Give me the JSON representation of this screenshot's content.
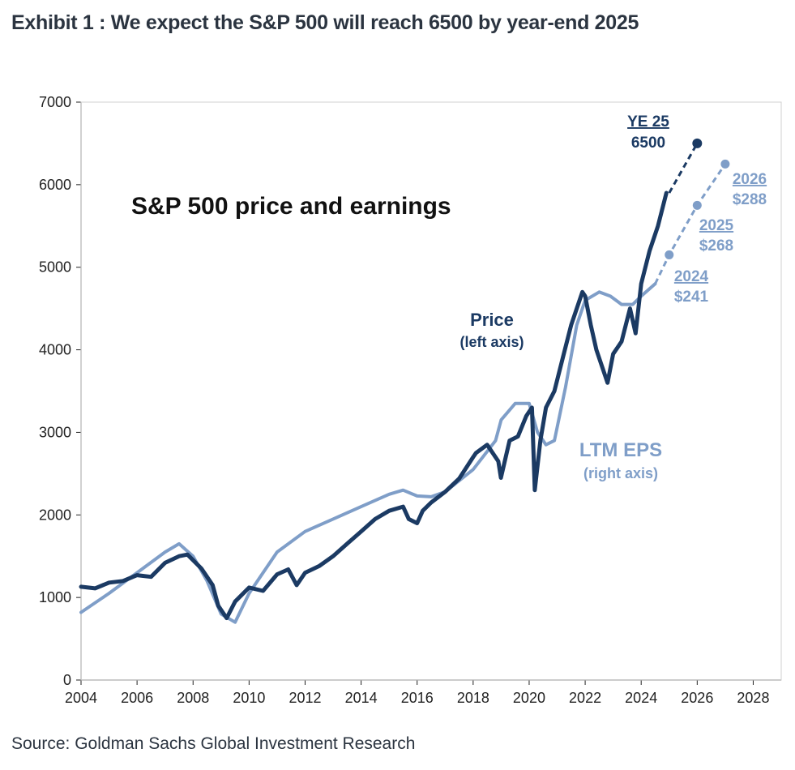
{
  "header": {
    "title": "Exhibit 1 : We expect the S&P 500 will reach 6500 by year-end 2025"
  },
  "footer": {
    "source": "Source: Goldman Sachs Global Investment Research"
  },
  "colors": {
    "price": "#1b3a63",
    "eps": "#7f9ec8",
    "axis": "#222222",
    "text": "#222222"
  },
  "chart_data": {
    "type": "line",
    "title": "S&P 500 price and earnings",
    "x_ticks": [
      "2004",
      "2006",
      "2008",
      "2010",
      "2012",
      "2014",
      "2016",
      "2018",
      "2020",
      "2022",
      "2024",
      "2026",
      "2028"
    ],
    "y_ticks": [
      "0",
      "1000",
      "2000",
      "3000",
      "4000",
      "5000",
      "6000",
      "7000"
    ],
    "xlim": [
      2004,
      2029
    ],
    "ylim": [
      0,
      7000
    ],
    "series": [
      {
        "name": "Price",
        "axis_label": "(left axis)",
        "x": [
          2004.0,
          2004.5,
          2005.0,
          2005.5,
          2006.0,
          2006.5,
          2007.0,
          2007.5,
          2007.8,
          2008.3,
          2008.7,
          2008.9,
          2009.2,
          2009.5,
          2010.0,
          2010.5,
          2011.0,
          2011.4,
          2011.7,
          2012.0,
          2012.5,
          2013.0,
          2013.5,
          2014.0,
          2014.5,
          2015.0,
          2015.5,
          2015.7,
          2016.0,
          2016.2,
          2016.5,
          2017.0,
          2017.5,
          2018.0,
          2018.1,
          2018.5,
          2018.9,
          2018.99,
          2019.3,
          2019.6,
          2019.9,
          2020.1,
          2020.2,
          2020.4,
          2020.6,
          2020.9,
          2021.2,
          2021.5,
          2021.9,
          2022.0,
          2022.2,
          2022.4,
          2022.6,
          2022.8,
          2023.0,
          2023.3,
          2023.6,
          2023.8,
          2024.0,
          2024.3,
          2024.6,
          2024.9
        ],
        "values": [
          1130,
          1110,
          1180,
          1200,
          1270,
          1250,
          1420,
          1500,
          1520,
          1350,
          1150,
          900,
          750,
          950,
          1120,
          1080,
          1280,
          1340,
          1150,
          1300,
          1380,
          1500,
          1650,
          1800,
          1950,
          2050,
          2100,
          1950,
          1900,
          2050,
          2150,
          2280,
          2440,
          2700,
          2750,
          2850,
          2650,
          2450,
          2900,
          2950,
          3200,
          3300,
          2300,
          2900,
          3300,
          3500,
          3900,
          4300,
          4700,
          4650,
          4300,
          4000,
          3800,
          3600,
          3950,
          4100,
          4500,
          4200,
          4800,
          5200,
          5500,
          5900
        ]
      },
      {
        "name": "LTM EPS",
        "axis_label": "(right axis)",
        "x": [
          2004.0,
          2005.0,
          2006.0,
          2007.0,
          2007.5,
          2008.0,
          2008.5,
          2009.0,
          2009.5,
          2010.0,
          2010.5,
          2011.0,
          2012.0,
          2013.0,
          2014.0,
          2015.0,
          2015.5,
          2016.0,
          2016.5,
          2017.0,
          2018.0,
          2018.8,
          2019.0,
          2019.5,
          2020.0,
          2020.3,
          2020.6,
          2020.9,
          2021.3,
          2021.7,
          2022.0,
          2022.5,
          2022.9,
          2023.3,
          2023.7,
          2024.0,
          2024.5
        ],
        "values": [
          820,
          1050,
          1300,
          1550,
          1650,
          1500,
          1200,
          800,
          700,
          1050,
          1300,
          1550,
          1800,
          1950,
          2100,
          2250,
          2300,
          2230,
          2220,
          2280,
          2550,
          2900,
          3150,
          3350,
          3350,
          3000,
          2850,
          2900,
          3550,
          4300,
          4600,
          4700,
          4650,
          4550,
          4550,
          4650,
          4800
        ]
      }
    ],
    "projections": [
      {
        "series": "Price",
        "label_line1": "YE 25",
        "label_line2": "6500",
        "x": [
          2025.0,
          2026.0
        ],
        "values": [
          5900,
          6500
        ]
      },
      {
        "series": "LTM EPS",
        "x": [
          2024.5,
          2025.0,
          2026.0,
          2027.0
        ],
        "values": [
          4800,
          5150,
          5750,
          6250
        ]
      }
    ],
    "eps_labels": [
      {
        "year": "2024",
        "value": "$241"
      },
      {
        "year": "2025",
        "value": "$268"
      },
      {
        "year": "2026",
        "value": "$288"
      }
    ]
  }
}
